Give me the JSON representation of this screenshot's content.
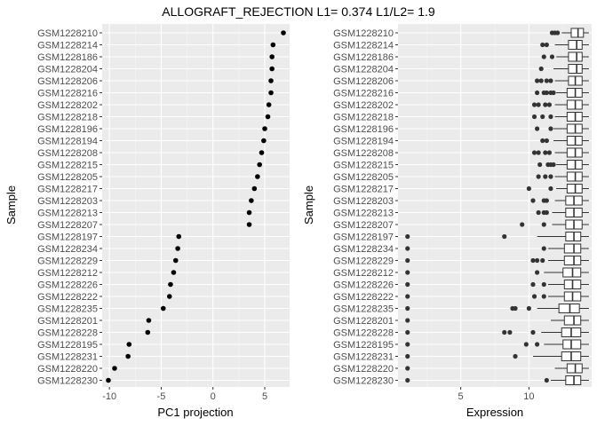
{
  "title": "ALLOGRAFT_REJECTION L1= 0.374 L1/L2= 1.9",
  "colors": {
    "panel_bg": "#ebebeb",
    "grid_major": "#ffffff",
    "grid_minor": "#f5f5f5",
    "point": "#000000",
    "outlier": "#333333",
    "tick_text": "#4d4d4d",
    "box_fill": "#ffffff",
    "box_line": "#333333"
  },
  "chart_data": [
    {
      "type": "scatter",
      "xlabel": "PC1 projection",
      "ylabel": "Sample",
      "xlim": [
        -10.7,
        7.4
      ],
      "xticks": [
        -10,
        -5,
        0,
        5
      ],
      "grid": true,
      "samples": [
        "GSM1228210",
        "GSM1228214",
        "GSM1228186",
        "GSM1228204",
        "GSM1228206",
        "GSM1228216",
        "GSM1228202",
        "GSM1228218",
        "GSM1228196",
        "GSM1228194",
        "GSM1228208",
        "GSM1228215",
        "GSM1228205",
        "GSM1228217",
        "GSM1228203",
        "GSM1228213",
        "GSM1228207",
        "GSM1228197",
        "GSM1228234",
        "GSM1228229",
        "GSM1228212",
        "GSM1228226",
        "GSM1228222",
        "GSM1228235",
        "GSM1228201",
        "GSM1228228",
        "GSM1228195",
        "GSM1228231",
        "GSM1228220",
        "GSM1228230"
      ],
      "values": [
        6.8,
        5.8,
        5.7,
        5.7,
        5.6,
        5.6,
        5.4,
        5.3,
        5.0,
        4.9,
        4.7,
        4.5,
        4.3,
        4.0,
        3.7,
        3.5,
        3.5,
        -3.3,
        -3.4,
        -3.6,
        -3.8,
        -4.1,
        -4.2,
        -4.8,
        -6.2,
        -6.3,
        -8.1,
        -8.2,
        -9.5,
        -10.1
      ]
    },
    {
      "type": "box",
      "xlabel": "Expression",
      "ylabel": "Sample",
      "xlim": [
        0.4,
        14.6
      ],
      "xticks": [
        5,
        10
      ],
      "grid": true,
      "samples": [
        "GSM1228210",
        "GSM1228214",
        "GSM1228186",
        "GSM1228204",
        "GSM1228206",
        "GSM1228216",
        "GSM1228202",
        "GSM1228218",
        "GSM1228196",
        "GSM1228194",
        "GSM1228208",
        "GSM1228215",
        "GSM1228205",
        "GSM1228217",
        "GSM1228203",
        "GSM1228213",
        "GSM1228207",
        "GSM1228197",
        "GSM1228234",
        "GSM1228229",
        "GSM1228212",
        "GSM1228226",
        "GSM1228222",
        "GSM1228235",
        "GSM1228201",
        "GSM1228228",
        "GSM1228195",
        "GSM1228231",
        "GSM1228220",
        "GSM1228230"
      ],
      "boxes": [
        {
          "lo": 12.4,
          "q1": 13.1,
          "med": 13.6,
          "q3": 14.0,
          "hi": 14.4,
          "outliers": [
            11.7,
            11.9,
            12.1
          ]
        },
        {
          "lo": 11.9,
          "q1": 12.9,
          "med": 13.5,
          "q3": 13.9,
          "hi": 14.4,
          "outliers": [
            11.0,
            11.3
          ]
        },
        {
          "lo": 12.0,
          "q1": 12.9,
          "med": 13.5,
          "q3": 13.9,
          "hi": 14.4,
          "outliers": [
            11.1,
            11.7
          ]
        },
        {
          "lo": 11.8,
          "q1": 12.9,
          "med": 13.5,
          "q3": 13.9,
          "hi": 14.4,
          "outliers": [
            10.9
          ]
        },
        {
          "lo": 11.9,
          "q1": 12.9,
          "med": 13.4,
          "q3": 13.9,
          "hi": 14.4,
          "outliers": [
            10.6,
            10.9,
            11.3,
            11.6
          ]
        },
        {
          "lo": 12.0,
          "q1": 12.8,
          "med": 13.4,
          "q3": 13.9,
          "hi": 14.4,
          "outliers": [
            10.6,
            11.1,
            11.3,
            11.6,
            11.8
          ]
        },
        {
          "lo": 11.9,
          "q1": 12.8,
          "med": 13.4,
          "q3": 13.9,
          "hi": 14.4,
          "outliers": [
            10.4,
            10.7,
            11.2,
            11.5
          ]
        },
        {
          "lo": 11.9,
          "q1": 12.8,
          "med": 13.4,
          "q3": 13.9,
          "hi": 14.4,
          "outliers": [
            10.4,
            11.0,
            11.6
          ]
        },
        {
          "lo": 11.8,
          "q1": 12.8,
          "med": 13.4,
          "q3": 13.9,
          "hi": 14.4,
          "outliers": [
            10.6,
            11.6
          ]
        },
        {
          "lo": 11.8,
          "q1": 12.8,
          "med": 13.4,
          "q3": 13.9,
          "hi": 14.4,
          "outliers": [
            11.0,
            11.3
          ]
        },
        {
          "lo": 11.9,
          "q1": 12.8,
          "med": 13.4,
          "q3": 13.9,
          "hi": 14.4,
          "outliers": [
            10.4,
            10.7,
            11.2,
            11.5
          ]
        },
        {
          "lo": 12.0,
          "q1": 12.8,
          "med": 13.4,
          "q3": 13.9,
          "hi": 14.4,
          "outliers": [
            10.8,
            11.4,
            11.6,
            11.8
          ]
        },
        {
          "lo": 11.9,
          "q1": 12.8,
          "med": 13.4,
          "q3": 13.9,
          "hi": 14.4,
          "outliers": [
            10.7,
            11.2,
            11.6
          ]
        },
        {
          "lo": 12.0,
          "q1": 12.8,
          "med": 13.4,
          "q3": 13.9,
          "hi": 14.4,
          "outliers": [
            10.0,
            11.6
          ]
        },
        {
          "lo": 11.9,
          "q1": 12.7,
          "med": 13.3,
          "q3": 13.9,
          "hi": 14.4,
          "outliers": [
            10.3,
            11.1,
            11.3
          ]
        },
        {
          "lo": 11.7,
          "q1": 12.7,
          "med": 13.3,
          "q3": 13.9,
          "hi": 14.4,
          "outliers": [
            10.7,
            11.1,
            11.3
          ]
        },
        {
          "lo": 11.7,
          "q1": 12.7,
          "med": 13.3,
          "q3": 13.9,
          "hi": 14.4,
          "outliers": [
            9.5,
            11.1
          ]
        },
        {
          "lo": 10.6,
          "q1": 12.7,
          "med": 13.3,
          "q3": 13.8,
          "hi": 14.4,
          "outliers": [
            1.1,
            8.2
          ]
        },
        {
          "lo": 11.4,
          "q1": 12.6,
          "med": 13.3,
          "q3": 13.8,
          "hi": 14.4,
          "outliers": [
            1.1,
            11.1
          ]
        },
        {
          "lo": 11.4,
          "q1": 12.6,
          "med": 13.3,
          "q3": 13.8,
          "hi": 14.4,
          "outliers": [
            1.1,
            10.3,
            10.6,
            11.0
          ]
        },
        {
          "lo": 11.1,
          "q1": 12.5,
          "med": 13.2,
          "q3": 13.8,
          "hi": 14.4,
          "outliers": [
            1.1,
            10.6
          ]
        },
        {
          "lo": 11.4,
          "q1": 12.6,
          "med": 13.2,
          "q3": 13.8,
          "hi": 14.4,
          "outliers": [
            1.1,
            10.3,
            11.1
          ]
        },
        {
          "lo": 11.4,
          "q1": 12.6,
          "med": 13.2,
          "q3": 13.8,
          "hi": 14.4,
          "outliers": [
            1.1,
            10.4,
            11.1
          ]
        },
        {
          "lo": 10.6,
          "q1": 12.2,
          "med": 13.0,
          "q3": 13.7,
          "hi": 14.4,
          "outliers": [
            1.1,
            8.8,
            9.0,
            10.0
          ]
        },
        {
          "lo": 11.6,
          "q1": 12.6,
          "med": 13.3,
          "q3": 13.8,
          "hi": 14.4,
          "outliers": [
            1.1
          ]
        },
        {
          "lo": 10.9,
          "q1": 12.4,
          "med": 13.1,
          "q3": 13.8,
          "hi": 14.4,
          "outliers": [
            1.1,
            8.2,
            8.6,
            10.3
          ]
        },
        {
          "lo": 11.1,
          "q1": 12.5,
          "med": 13.1,
          "q3": 13.8,
          "hi": 14.4,
          "outliers": [
            1.1,
            9.8,
            10.6
          ]
        },
        {
          "lo": 10.3,
          "q1": 12.4,
          "med": 13.1,
          "q3": 13.8,
          "hi": 14.4,
          "outliers": [
            1.1,
            9.0
          ]
        },
        {
          "lo": 11.9,
          "q1": 12.8,
          "med": 13.4,
          "q3": 13.9,
          "hi": 14.4,
          "outliers": [
            1.1
          ]
        },
        {
          "lo": 11.6,
          "q1": 12.7,
          "med": 13.3,
          "q3": 13.8,
          "hi": 14.4,
          "outliers": [
            1.1,
            11.3
          ]
        }
      ]
    }
  ]
}
